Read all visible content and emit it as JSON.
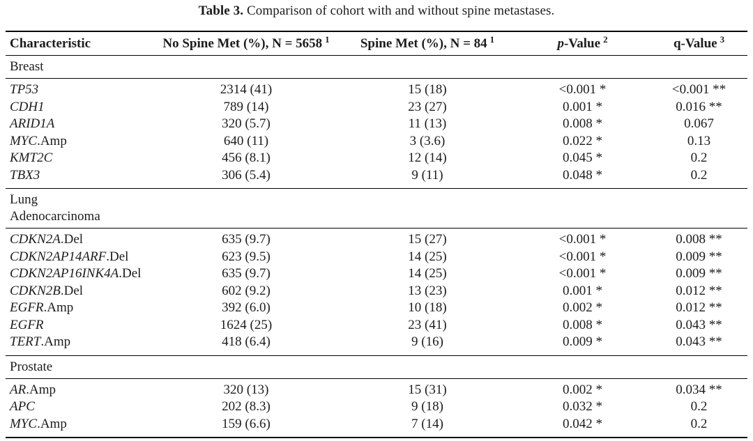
{
  "caption": {
    "label": "Table 3.",
    "text": "Comparison of cohort with and without spine metastases."
  },
  "table": {
    "header": {
      "characteristic": "Characteristic",
      "no_spine": {
        "label": "No Spine Met (%), N = 5658",
        "sup": "1"
      },
      "spine": {
        "label": "Spine Met (%), N = 84",
        "sup": "1"
      },
      "p": {
        "italic": "p",
        "label": "-Value",
        "sup": "2"
      },
      "q": {
        "label": "q-Value",
        "sup": "3"
      }
    },
    "sections": [
      {
        "name": "Breast",
        "rows": [
          {
            "gene": "TP53",
            "suffix": "",
            "no_spine": "2314 (41)",
            "spine": "15 (18)",
            "p": "<0.001 *",
            "q": "<0.001 **"
          },
          {
            "gene": "CDH1",
            "suffix": "",
            "no_spine": "789 (14)",
            "spine": "23 (27)",
            "p": "0.001 *",
            "q": "0.016 **"
          },
          {
            "gene": "ARID1A",
            "suffix": "",
            "no_spine": "320 (5.7)",
            "spine": "11 (13)",
            "p": "0.008 *",
            "q": "0.067"
          },
          {
            "gene": "MYC",
            "suffix": ".Amp",
            "no_spine": "640 (11)",
            "spine": "3 (3.6)",
            "p": "0.022 *",
            "q": "0.13"
          },
          {
            "gene": "KMT2C",
            "suffix": "",
            "no_spine": "456 (8.1)",
            "spine": "12 (14)",
            "p": "0.045 *",
            "q": "0.2"
          },
          {
            "gene": "TBX3",
            "suffix": "",
            "no_spine": "306 (5.4)",
            "spine": "9 (11)",
            "p": "0.048 *",
            "q": "0.2"
          }
        ]
      },
      {
        "name": "Lung\nAdenocarcinoma",
        "rows": [
          {
            "gene": "CDKN2A",
            "suffix": ".Del",
            "no_spine": "635 (9.7)",
            "spine": "15 (27)",
            "p": "<0.001 *",
            "q": "0.008 **"
          },
          {
            "gene": "CDKN2AP14ARF",
            "suffix": ".Del",
            "no_spine": "623 (9.5)",
            "spine": "14 (25)",
            "p": "<0.001 *",
            "q": "0.009 **"
          },
          {
            "gene": "CDKN2AP16INK4A",
            "suffix": ".Del",
            "no_spine": "635 (9.7)",
            "spine": "14 (25)",
            "p": "<0.001 *",
            "q": "0.009 **"
          },
          {
            "gene": "CDKN2B",
            "suffix": ".Del",
            "no_spine": "602 (9.2)",
            "spine": "13 (23)",
            "p": "0.001 *",
            "q": "0.012 **"
          },
          {
            "gene": "EGFR",
            "suffix": ".Amp",
            "no_spine": "392 (6.0)",
            "spine": "10 (18)",
            "p": "0.002 *",
            "q": "0.012 **"
          },
          {
            "gene": "EGFR",
            "suffix": "",
            "no_spine": "1624 (25)",
            "spine": "23 (41)",
            "p": "0.008 *",
            "q": "0.043 **"
          },
          {
            "gene": "TERT",
            "suffix": ".Amp",
            "no_spine": "418 (6.4)",
            "spine": "9 (16)",
            "p": "0.009 *",
            "q": "0.043 **"
          }
        ]
      },
      {
        "name": "Prostate",
        "rows": [
          {
            "gene": "AR",
            "suffix": ".Amp",
            "no_spine": "320 (13)",
            "spine": "15 (31)",
            "p": "0.002 *",
            "q": "0.034 **"
          },
          {
            "gene": "APC",
            "suffix": "",
            "no_spine": "202 (8.3)",
            "spine": "9 (18)",
            "p": "0.032 *",
            "q": "0.2"
          },
          {
            "gene": "MYC",
            "suffix": ".Amp",
            "no_spine": "159 (6.6)",
            "spine": "7 (14)",
            "p": "0.042 *",
            "q": "0.2"
          }
        ]
      }
    ]
  }
}
